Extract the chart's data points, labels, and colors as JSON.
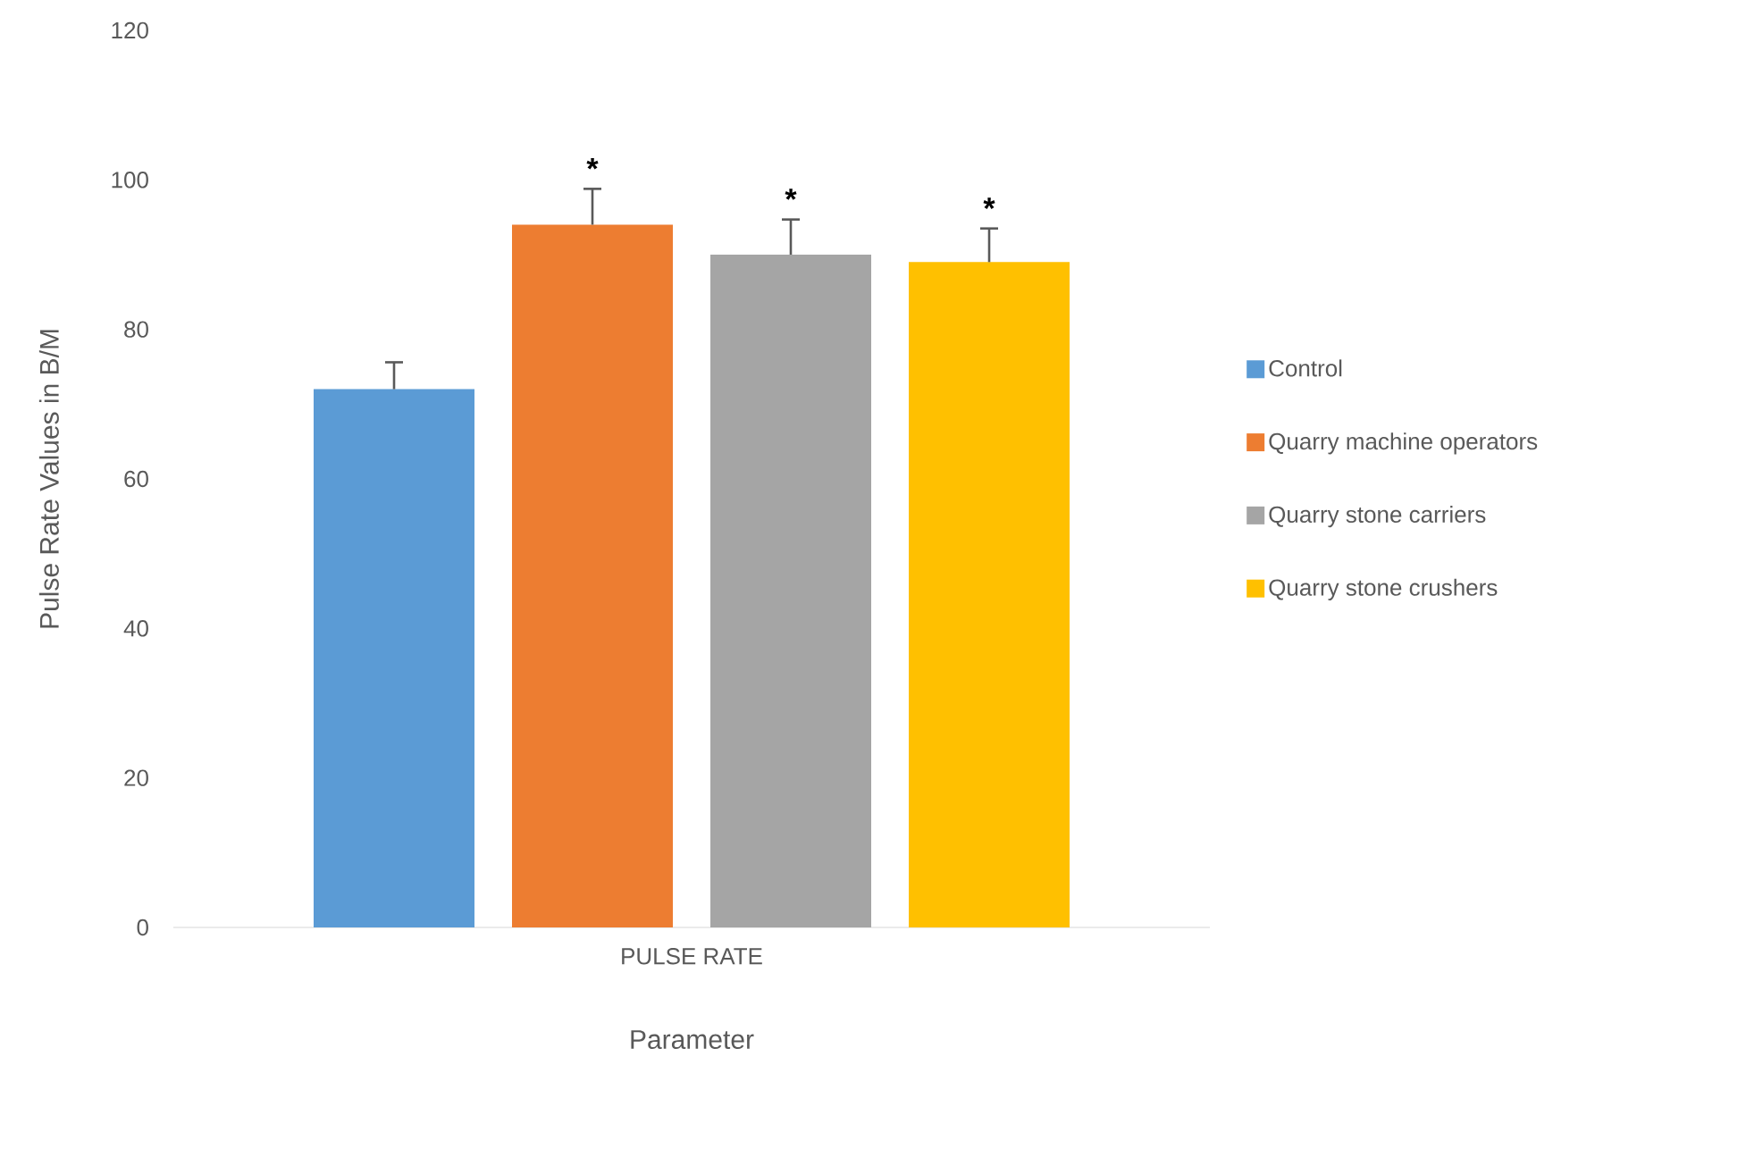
{
  "chart_data": {
    "type": "bar",
    "xlabel": "Parameter",
    "ylabel": "Pulse Rate Values in B/M",
    "categories": [
      "PULSE RATE"
    ],
    "series": [
      {
        "name": "Control",
        "color": "#5b9bd5",
        "values": [
          72
        ],
        "errors": [
          3.6
        ],
        "value_labels": [
          null
        ]
      },
      {
        "name": "Quarry machine operators",
        "color": "#ed7d31",
        "values": [
          94
        ],
        "errors": [
          4.8
        ],
        "value_labels": [
          "*"
        ]
      },
      {
        "name": "Quarry stone carriers",
        "color": "#a5a5a5",
        "values": [
          90
        ],
        "errors": [
          4.7
        ],
        "value_labels": [
          "*"
        ]
      },
      {
        "name": "Quarry stone crushers",
        "color": "#ffc000",
        "values": [
          89
        ],
        "errors": [
          4.5
        ],
        "value_labels": [
          "*"
        ]
      }
    ],
    "ylim": [
      0,
      120
    ],
    "yticks": [
      0,
      20,
      40,
      60,
      80,
      100,
      120
    ],
    "grid": false,
    "legend": "right"
  }
}
